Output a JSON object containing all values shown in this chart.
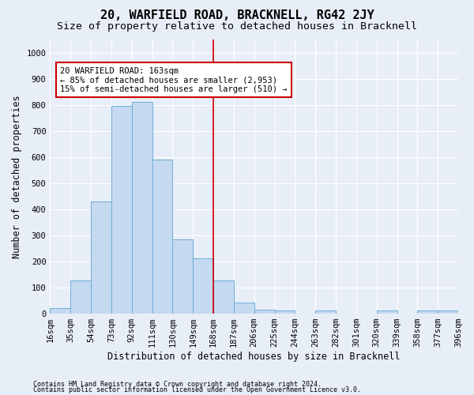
{
  "title": "20, WARFIELD ROAD, BRACKNELL, RG42 2JY",
  "subtitle": "Size of property relative to detached houses in Bracknell",
  "xlabel": "Distribution of detached houses by size in Bracknell",
  "ylabel": "Number of detached properties",
  "tick_labels": [
    "16sqm",
    "35sqm",
    "54sqm",
    "73sqm",
    "92sqm",
    "111sqm",
    "130sqm",
    "149sqm",
    "168sqm",
    "187sqm",
    "206sqm",
    "225sqm",
    "244sqm",
    "263sqm",
    "282sqm",
    "301sqm",
    "320sqm",
    "339sqm",
    "358sqm",
    "377sqm",
    "396sqm"
  ],
  "bar_values": [
    20,
    125,
    430,
    795,
    810,
    590,
    285,
    210,
    125,
    40,
    15,
    10,
    0,
    10,
    0,
    0,
    10,
    0,
    10,
    10
  ],
  "bar_color": "#c5d9f0",
  "bar_edge_color": "#6baed6",
  "vline_color": "#cc0000",
  "vline_position": 8.0,
  "annotation_text": "20 WARFIELD ROAD: 163sqm\n← 85% of detached houses are smaller (2,953)\n15% of semi-detached houses are larger (510) →",
  "annotation_box_edgecolor": "#cc0000",
  "ylim": [
    0,
    1050
  ],
  "yticks": [
    0,
    100,
    200,
    300,
    400,
    500,
    600,
    700,
    800,
    900,
    1000
  ],
  "bg_color": "#e8eef8",
  "footnote1": "Contains HM Land Registry data © Crown copyright and database right 2024.",
  "footnote2": "Contains public sector information licensed under the Open Government Licence v3.0.",
  "title_fontsize": 11,
  "subtitle_fontsize": 9.5,
  "axis_label_fontsize": 8.5,
  "tick_fontsize": 7.5,
  "annot_fontsize": 7.5,
  "footnote_fontsize": 6.0
}
